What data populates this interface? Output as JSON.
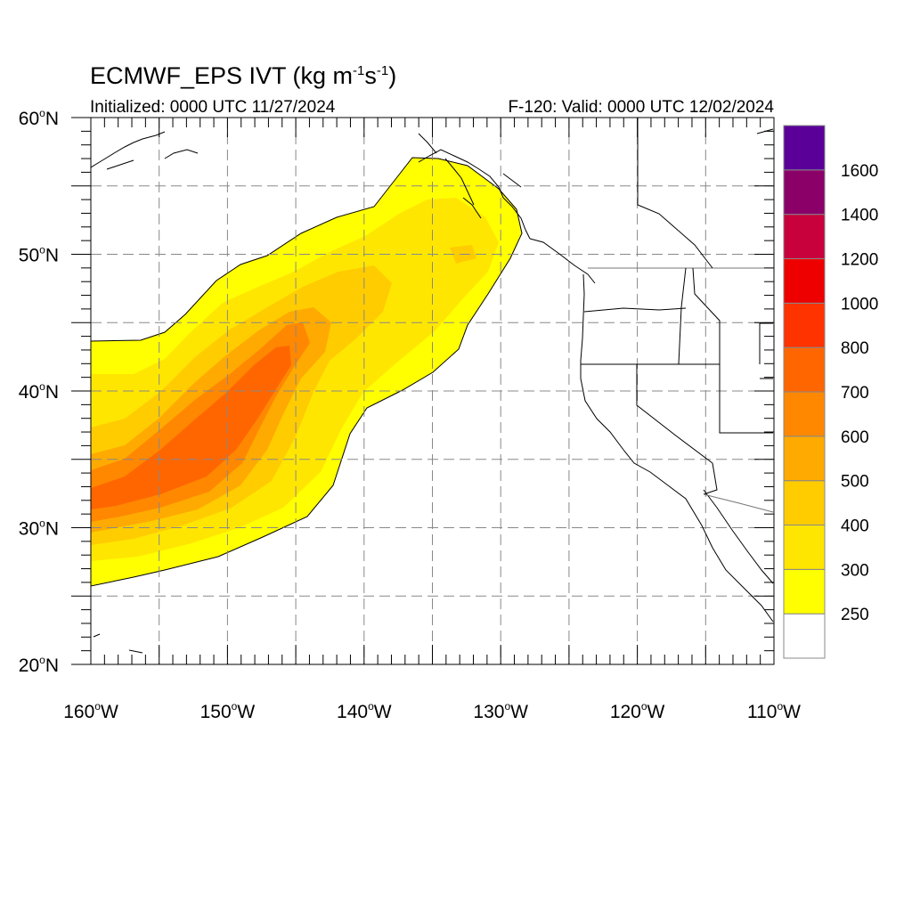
{
  "header": {
    "title_prefix": "ECMWF_EPS IVT (kg m",
    "title_exp1": "-1",
    "title_mid": "s",
    "title_exp2": "-1",
    "title_suffix": ")",
    "initialized": "Initialized: 0000 UTC 11/27/2024",
    "valid": "F-120: Valid: 0000 UTC 12/02/2024"
  },
  "map": {
    "lon_range": [
      -160,
      -110
    ],
    "lat_range": [
      20,
      60
    ],
    "lat_labels": [
      {
        "deg": "60",
        "lat": 60
      },
      {
        "deg": "50",
        "lat": 50
      },
      {
        "deg": "40",
        "lat": 40
      },
      {
        "deg": "30",
        "lat": 30
      },
      {
        "deg": "20",
        "lat": 20
      }
    ],
    "lon_labels": [
      {
        "deg": "160",
        "lon": -160
      },
      {
        "deg": "150",
        "lon": -150
      },
      {
        "deg": "140",
        "lon": -140
      },
      {
        "deg": "130",
        "lon": -130
      },
      {
        "deg": "120",
        "lon": -120
      },
      {
        "deg": "110",
        "lon": -110
      }
    ],
    "gridlines": "dashed gray every 5 degrees"
  },
  "colorbar": {
    "levels": [
      {
        "label": "250",
        "color": "#ffff00"
      },
      {
        "label": "300",
        "color": "#ffe600"
      },
      {
        "label": "400",
        "color": "#ffcc00"
      },
      {
        "label": "500",
        "color": "#ffaa00"
      },
      {
        "label": "600",
        "color": "#ff8800"
      },
      {
        "label": "700",
        "color": "#ff6600"
      },
      {
        "label": "800",
        "color": "#ff3300"
      },
      {
        "label": "1000",
        "color": "#ee0000"
      },
      {
        "label": "1200",
        "color": "#c8003c"
      },
      {
        "label": "1400",
        "color": "#8b0068"
      },
      {
        "label": "1600",
        "color": "#5a0098"
      }
    ],
    "below_min_color": "#ffffff"
  }
}
